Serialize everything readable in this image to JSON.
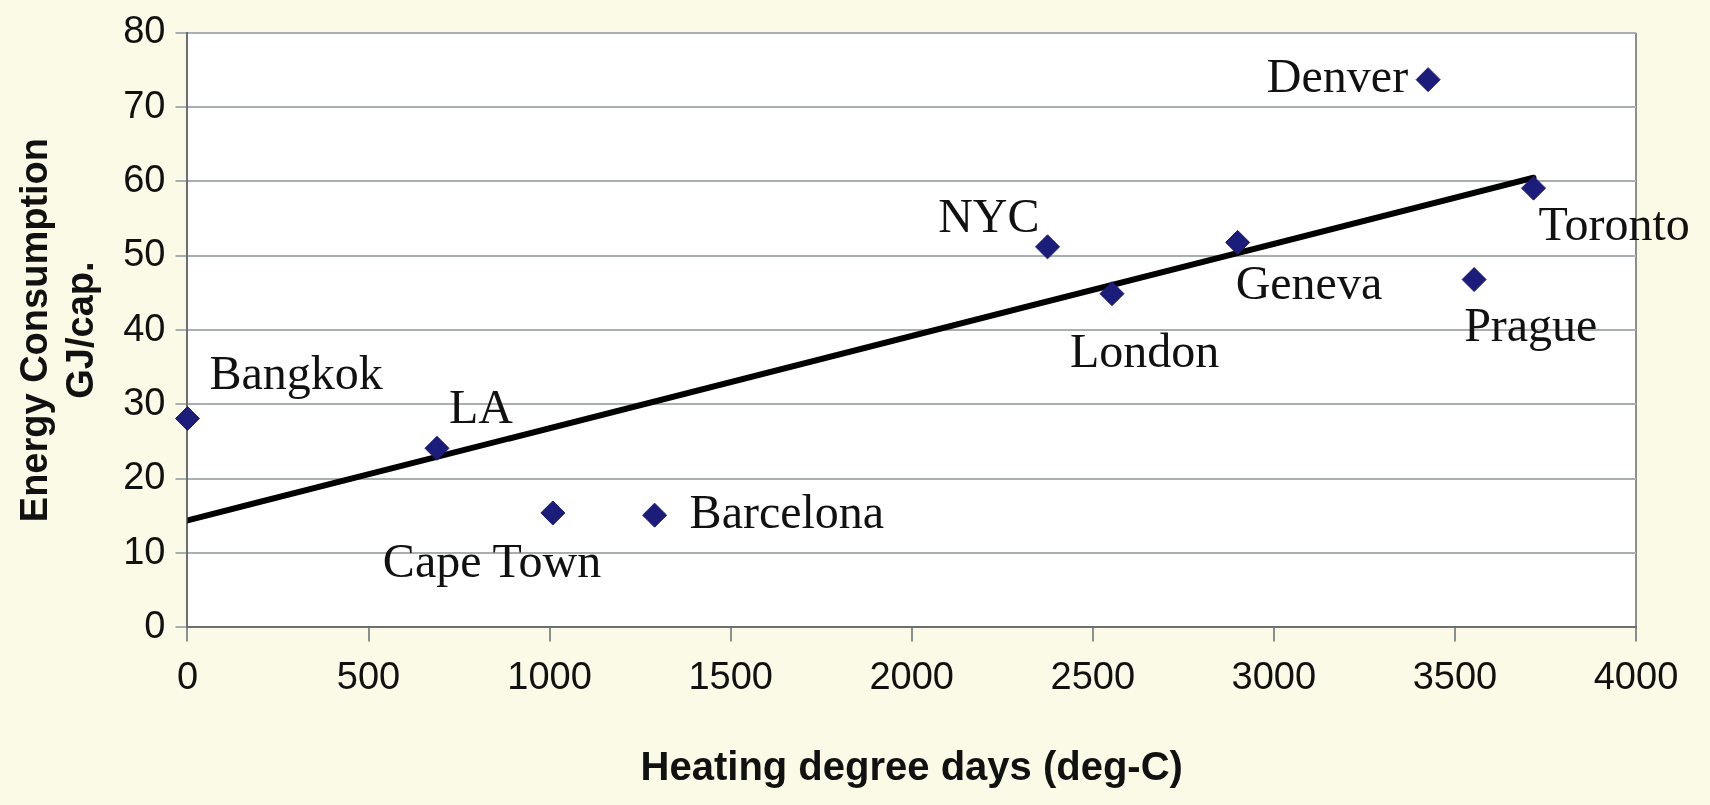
{
  "chart_data": {
    "type": "scatter",
    "xlabel": "Heating degree days (deg-C)",
    "ylabel": "Energy Consumption\nGJ/cap.",
    "series": [
      {
        "marker": "diamond",
        "color": "#1c1c7a",
        "x": [
          0,
          689,
          1009,
          1290,
          2375,
          2553,
          2900,
          3426,
          3553,
          3717
        ],
        "values": [
          28.1,
          24.1,
          15.4,
          15.1,
          51.2,
          44.9,
          51.8,
          73.7,
          46.8,
          59.1
        ]
      },
      {
        "type": "line",
        "marker": "none",
        "color": "#000000",
        "x": [
          0,
          3717
        ],
        "values": [
          14.4,
          60.5
        ]
      }
    ],
    "xlim": [
      0,
      4000
    ],
    "xticks": [
      0,
      500,
      1000,
      1500,
      2000,
      2500,
      3000,
      3500,
      4000
    ],
    "ylim": [
      0,
      80
    ],
    "yticks": [
      0,
      10,
      20,
      30,
      40,
      50,
      60,
      70,
      80
    ],
    "grid": "y",
    "annotations": [
      {
        "text": "Bangkok",
        "x": 0,
        "y": 28.1
      },
      {
        "text": "LA",
        "x": 689,
        "y": 24.1
      },
      {
        "text": "Cape Town",
        "x": 1009,
        "y": 15.4
      },
      {
        "text": "Barcelona",
        "x": 1290,
        "y": 15.1
      },
      {
        "text": "NYC",
        "x": 2375,
        "y": 51.2
      },
      {
        "text": "London",
        "x": 2553,
        "y": 44.9
      },
      {
        "text": "Geneva",
        "x": 2900,
        "y": 51.8
      },
      {
        "text": "Denver",
        "x": 3426,
        "y": 73.7
      },
      {
        "text": "Prague",
        "x": 3553,
        "y": 46.8
      },
      {
        "text": "Toronto",
        "x": 3717,
        "y": 59.1
      }
    ]
  }
}
